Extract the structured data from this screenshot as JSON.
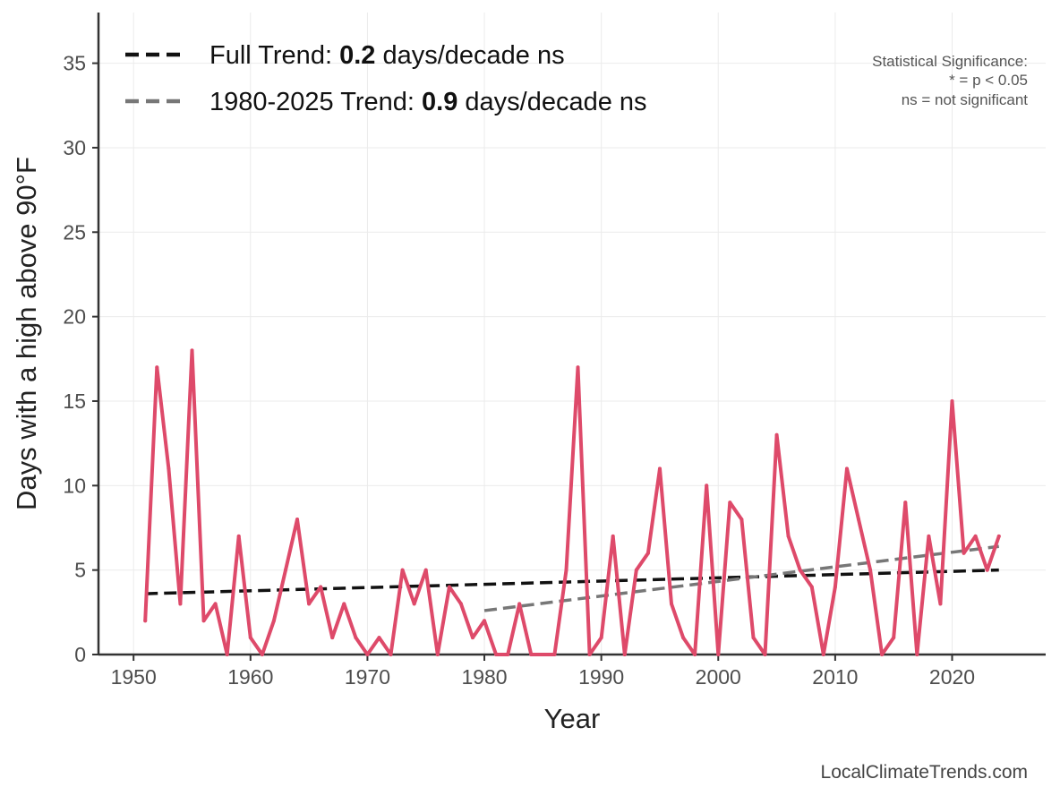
{
  "chart_data": {
    "type": "line",
    "xlabel": "Year",
    "ylabel": "Days with a high above 90°F",
    "xlim": [
      1947,
      2028
    ],
    "ylim": [
      0,
      38
    ],
    "x_ticks": [
      1950,
      1960,
      1970,
      1980,
      1990,
      2000,
      2010,
      2020
    ],
    "y_ticks": [
      0,
      5,
      10,
      15,
      20,
      25,
      30,
      35
    ],
    "grid": true,
    "legend_placement": "top-left",
    "series": [
      {
        "color": "#de4a6a",
        "x": [
          1951,
          1952,
          1953,
          1954,
          1955,
          1956,
          1957,
          1958,
          1959,
          1960,
          1961,
          1962,
          1963,
          1964,
          1965,
          1966,
          1967,
          1968,
          1969,
          1970,
          1971,
          1972,
          1973,
          1974,
          1975,
          1976,
          1977,
          1978,
          1979,
          1980,
          1981,
          1982,
          1983,
          1984,
          1985,
          1986,
          1987,
          1988,
          1989,
          1990,
          1991,
          1992,
          1993,
          1994,
          1995,
          1996,
          1997,
          1998,
          1999,
          2000,
          2001,
          2002,
          2003,
          2004,
          2005,
          2006,
          2007,
          2008,
          2009,
          2010,
          2011,
          2012,
          2013,
          2014,
          2015,
          2016,
          2017,
          2018,
          2019,
          2020,
          2021,
          2022,
          2023,
          2024
        ],
        "values": [
          2,
          17,
          11,
          3,
          18,
          2,
          3,
          0,
          7,
          1,
          0,
          2,
          5,
          8,
          3,
          4,
          1,
          3,
          1,
          0,
          1,
          0,
          5,
          3,
          5,
          0,
          4,
          3,
          1,
          2,
          0,
          0,
          3,
          0,
          0,
          0,
          5,
          17,
          0,
          1,
          7,
          0,
          5,
          6,
          11,
          3,
          1,
          0,
          10,
          0,
          9,
          8,
          1,
          0,
          13,
          7,
          5,
          4,
          0,
          4,
          11,
          8,
          5,
          0,
          1,
          9,
          0,
          7,
          3,
          15,
          6,
          7,
          5,
          7
        ]
      }
    ],
    "trends": [
      {
        "label_prefix": "Full Trend: ",
        "value": "0.2",
        "label_suffix": " days/decade ns",
        "color": "#111111",
        "x": [
          1951,
          2024
        ],
        "values": [
          3.6,
          5.0
        ]
      },
      {
        "label_prefix": "1980-2025 Trend: ",
        "value": "0.9",
        "label_suffix": " days/decade ns",
        "color": "#777777",
        "x": [
          1980,
          2024
        ],
        "values": [
          2.6,
          6.4
        ]
      }
    ],
    "annotation": [
      "Statistical Significance:",
      "* = p < 0.05",
      "ns = not significant"
    ],
    "credit": "LocalClimateTrends.com"
  }
}
